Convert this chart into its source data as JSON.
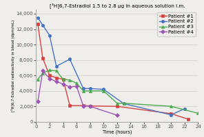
{
  "title": "[³H]6,7-Estradiol 1.5 to 2.8 µg in aqueous solution i.m.",
  "xlabel": "Time (hours)",
  "ylabel": "[³H]6,7-Estradiol radioactivity in blood (dpm/mL)",
  "patients": {
    "Patient #1": {
      "color": "#d44040",
      "marker": "s",
      "markersize": 3,
      "x": [
        0.25,
        1,
        2,
        3,
        4,
        5,
        7,
        8,
        12,
        20,
        22.5
      ],
      "y": [
        12700,
        8200,
        6000,
        5700,
        5500,
        2100,
        2100,
        2050,
        2000,
        1050,
        350
      ]
    },
    "Patient #2": {
      "color": "#4472c4",
      "marker": "o",
      "markersize": 3,
      "x": [
        0.25,
        1,
        2,
        3,
        5,
        7,
        8,
        10,
        13,
        20,
        22
      ],
      "y": [
        13500,
        12500,
        11200,
        7200,
        8100,
        4300,
        4300,
        4200,
        2350,
        900,
        1700
      ]
    },
    "Patient #3": {
      "color": "#4aaa50",
      "marker": "^",
      "markersize": 3,
      "x": [
        0.25,
        1,
        2,
        3,
        4,
        5,
        6,
        7,
        8,
        10,
        12,
        13,
        20,
        24
      ],
      "y": [
        5500,
        6300,
        6700,
        6600,
        5500,
        5400,
        5000,
        4000,
        4000,
        4000,
        2400,
        2400,
        2000,
        1100
      ]
    },
    "Patient #4": {
      "color": "#9b55b5",
      "marker": "D",
      "markersize": 3,
      "x": [
        0.25,
        1,
        2,
        3,
        4,
        5,
        6,
        7,
        8,
        12
      ],
      "y": [
        2600,
        6600,
        5600,
        5200,
        4900,
        4500,
        4600,
        2050,
        2000,
        850
      ]
    }
  },
  "xlim": [
    0,
    24
  ],
  "ylim": [
    0,
    14500
  ],
  "yticks": [
    0,
    2000,
    4000,
    6000,
    8000,
    10000,
    12000,
    14000
  ],
  "xticks": [
    0,
    2,
    4,
    6,
    8,
    10,
    12,
    14,
    16,
    18,
    20,
    22,
    24
  ],
  "background_color": "#f0eeea",
  "grid_color": "#d0ccc8",
  "spine_color": "#aaaaaa",
  "tick_color": "#555555",
  "title_fontsize": 5.2,
  "label_fontsize": 4.8,
  "tick_fontsize": 5.0,
  "legend_fontsize": 5.0,
  "linewidth": 1.0
}
